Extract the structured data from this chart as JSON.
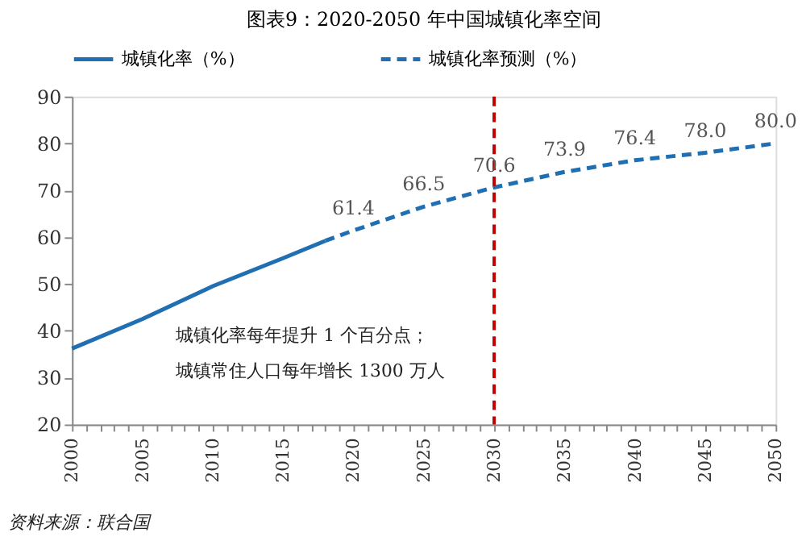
{
  "chart_data": {
    "type": "line",
    "title": "图表9：2020-2050 年中国城镇化率空间",
    "series": [
      {
        "name": "城镇化率（%）",
        "color": "#1f6fb2",
        "line_style": "solid",
        "x": [
          2000,
          2005,
          2010,
          2015,
          2018
        ],
        "values": [
          36.2,
          42.5,
          49.5,
          55.5,
          59.2
        ]
      },
      {
        "name": "城镇化率预测（%）",
        "color": "#1f6fb2",
        "line_style": "dashed",
        "x": [
          2018,
          2020,
          2025,
          2030,
          2035,
          2040,
          2045,
          2050
        ],
        "values": [
          59.2,
          61.4,
          66.5,
          70.6,
          73.9,
          76.4,
          78.0,
          80.0
        ],
        "value_labels": [
          null,
          "61.4",
          "66.5",
          "70.6",
          "73.9",
          "76.4",
          "78.0",
          "80.0"
        ]
      }
    ],
    "xlim": [
      2000,
      2050
    ],
    "ylim": [
      20,
      90
    ],
    "yticks": [
      20,
      30,
      40,
      50,
      60,
      70,
      80,
      90
    ],
    "xticks": [
      2000,
      {
        "value": 2001,
        "label": null
      },
      {
        "value": 2002,
        "label": null
      },
      {
        "value": 2003,
        "label": null
      },
      {
        "value": 2004,
        "label": null
      },
      2005,
      {
        "value": 2006,
        "label": null
      },
      {
        "value": 2007,
        "label": null
      },
      {
        "value": 2008,
        "label": null
      },
      {
        "value": 2009,
        "label": null
      },
      2010,
      {
        "value": 2011,
        "label": null
      },
      {
        "value": 2012,
        "label": null
      },
      {
        "value": 2013,
        "label": null
      },
      {
        "value": 2014,
        "label": null
      },
      2015,
      {
        "value": 2016,
        "label": null
      },
      {
        "value": 2017,
        "label": null
      },
      {
        "value": 2018,
        "label": null
      },
      {
        "value": 2019,
        "label": null
      },
      2020,
      {
        "value": 2021,
        "label": null
      },
      {
        "value": 2022,
        "label": null
      },
      {
        "value": 2023,
        "label": null
      },
      {
        "value": 2024,
        "label": null
      },
      2025,
      {
        "value": 2026,
        "label": null
      },
      {
        "value": 2027,
        "label": null
      },
      {
        "value": 2028,
        "label": null
      },
      {
        "value": 2029,
        "label": null
      },
      2030,
      {
        "value": 2031,
        "label": null
      },
      {
        "value": 2032,
        "label": null
      },
      {
        "value": 2033,
        "label": null
      },
      {
        "value": 2034,
        "label": null
      },
      2035,
      {
        "value": 2036,
        "label": null
      },
      {
        "value": 2037,
        "label": null
      },
      {
        "value": 2038,
        "label": null
      },
      {
        "value": 2039,
        "label": null
      },
      2040,
      {
        "value": 2041,
        "label": null
      },
      {
        "value": 2042,
        "label": null
      },
      {
        "value": 2043,
        "label": null
      },
      {
        "value": 2044,
        "label": null
      },
      2045,
      {
        "value": 2046,
        "label": null
      },
      {
        "value": 2047,
        "label": null
      },
      {
        "value": 2048,
        "label": null
      },
      {
        "value": 2049,
        "label": null
      },
      2050
    ],
    "ref_lines": [
      {
        "axis": "x",
        "value": 2030,
        "label": null,
        "color": "#c00000",
        "line_style": "dashed"
      }
    ],
    "grid": false,
    "legend": "top",
    "marker": "none",
    "annotations": [
      "城镇化率每年提升 1 个百分点；",
      "城镇常住人口每年增长 1300 万人",
      "资料来源：联合国"
    ]
  }
}
